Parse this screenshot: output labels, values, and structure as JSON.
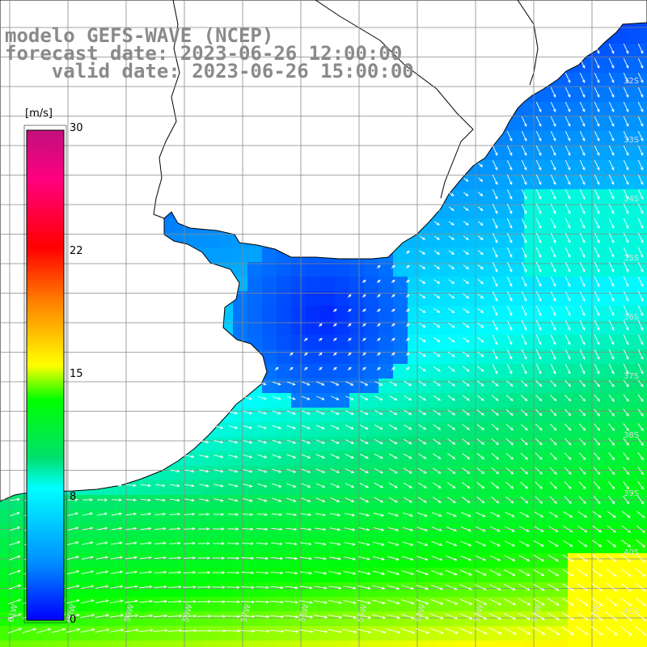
{
  "title": {
    "line1": "modelo GEFS-WAVE (NCEP)",
    "line2": "forecast date: 2023-06-26 12:00:00",
    "line3": "    valid date: 2023-06-26 15:00:00"
  },
  "colorbar": {
    "unit": "[m/s]",
    "ticks": [
      "30",
      "22",
      "15",
      "8",
      "0"
    ],
    "colors": [
      "#0000ff",
      "#0090ff",
      "#00ffff",
      "#00e050",
      "#00ff00",
      "#ffff00",
      "#ff8000",
      "#ff0000",
      "#ff0080",
      "#c0107c"
    ]
  },
  "map": {
    "lat_labels": [
      "32S",
      "33S",
      "34S",
      "35S",
      "36S",
      "37S",
      "38S",
      "39S",
      "40S",
      "41S"
    ],
    "lon_labels": [
      "61W",
      "60W",
      "59W",
      "58W",
      "57W",
      "56W",
      "55W",
      "54W",
      "53W",
      "52W",
      "51W"
    ],
    "land_color": "#ffffff",
    "grid_color": "#888888",
    "arrow_color": "#ffffff"
  }
}
